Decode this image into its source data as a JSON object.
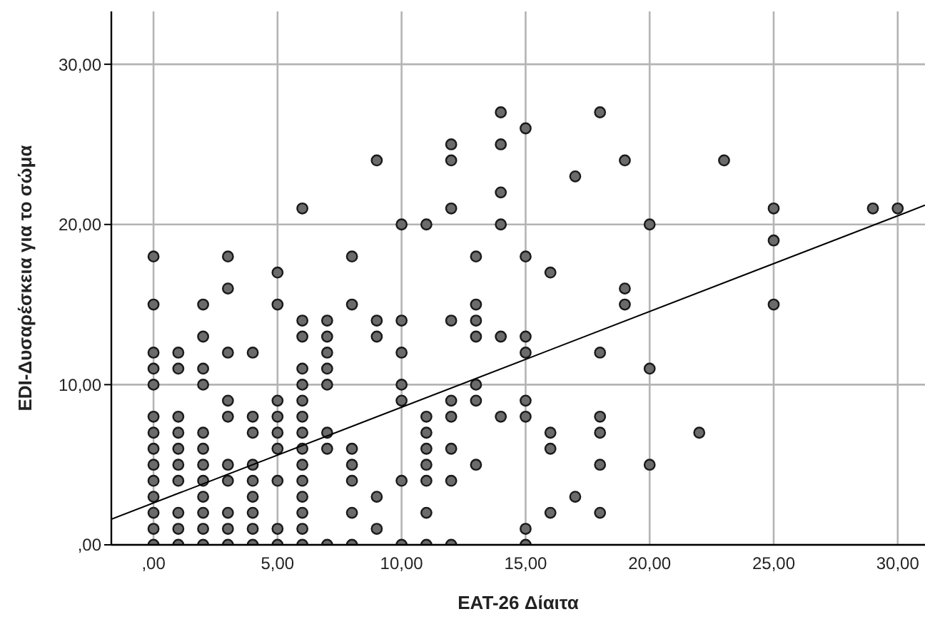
{
  "chart_data": {
    "type": "scatter",
    "xlabel": "EAT-26 Δίαιτα",
    "ylabel": "EDI-Δυσαρέσκεια για το σώμα",
    "xlim": [
      -1.7,
      31.1
    ],
    "ylim": [
      0,
      33.3
    ],
    "xticks": [
      {
        "value": 0,
        "label": ",00"
      },
      {
        "value": 5,
        "label": "5,00"
      },
      {
        "value": 10,
        "label": "10,00"
      },
      {
        "value": 15,
        "label": "15,00"
      },
      {
        "value": 20,
        "label": "20,00"
      },
      {
        "value": 25,
        "label": "25,00"
      },
      {
        "value": 30,
        "label": "30,00"
      }
    ],
    "yticks": [
      {
        "value": 0,
        "label": ",00"
      },
      {
        "value": 10,
        "label": "10,00"
      },
      {
        "value": 20,
        "label": "20,00"
      },
      {
        "value": 30,
        "label": "30,00"
      }
    ],
    "grid": true,
    "series": [
      {
        "color": "#6b6b6b",
        "marker": "circle",
        "x": [
          0,
          0,
          0,
          0,
          0,
          0,
          0,
          0,
          0,
          0,
          0,
          0,
          0,
          0,
          1,
          1,
          1,
          1,
          1,
          1,
          1,
          1,
          1,
          1,
          2,
          2,
          2,
          2,
          2,
          2,
          2,
          2,
          2,
          2,
          2,
          2,
          3,
          3,
          3,
          3,
          3,
          3,
          3,
          3,
          3,
          3,
          4,
          4,
          4,
          4,
          4,
          4,
          4,
          4,
          4,
          5,
          5,
          5,
          5,
          5,
          5,
          5,
          5,
          5,
          6,
          6,
          6,
          6,
          6,
          6,
          6,
          6,
          6,
          6,
          6,
          6,
          6,
          6,
          6,
          7,
          7,
          7,
          7,
          7,
          7,
          7,
          7,
          8,
          8,
          8,
          8,
          8,
          8,
          8,
          9,
          9,
          9,
          9,
          9,
          10,
          10,
          10,
          10,
          10,
          10,
          10,
          11,
          11,
          11,
          11,
          11,
          11,
          11,
          11,
          12,
          12,
          12,
          12,
          12,
          12,
          12,
          12,
          12,
          13,
          13,
          13,
          13,
          13,
          13,
          13,
          14,
          14,
          14,
          14,
          14,
          14,
          15,
          15,
          15,
          15,
          15,
          15,
          15,
          15,
          16,
          16,
          16,
          16,
          17,
          17,
          18,
          18,
          18,
          18,
          18,
          18,
          19,
          19,
          19,
          20,
          20,
          20,
          22,
          23,
          25,
          25,
          25,
          29,
          30
        ],
        "values": [
          18,
          15,
          12,
          11,
          10,
          8,
          7,
          6,
          5,
          4,
          3,
          2,
          1,
          0,
          12,
          11,
          8,
          7,
          6,
          5,
          4,
          2,
          1,
          0,
          15,
          13,
          11,
          10,
          7,
          6,
          5,
          4,
          3,
          2,
          1,
          0,
          18,
          16,
          12,
          9,
          8,
          5,
          4,
          2,
          1,
          0,
          12,
          8,
          7,
          5,
          4,
          3,
          2,
          1,
          0,
          17,
          15,
          9,
          8,
          7,
          6,
          4,
          1,
          0,
          21,
          14,
          13,
          11,
          10,
          9,
          8,
          7,
          6,
          5,
          4,
          3,
          2,
          1,
          0,
          14,
          13,
          12,
          11,
          10,
          7,
          6,
          0,
          18,
          15,
          6,
          5,
          4,
          2,
          0,
          24,
          14,
          13,
          3,
          1,
          20,
          14,
          12,
          10,
          9,
          4,
          0,
          20,
          8,
          7,
          6,
          5,
          4,
          2,
          0,
          25,
          24,
          21,
          14,
          9,
          8,
          6,
          4,
          0,
          18,
          15,
          14,
          13,
          10,
          9,
          5,
          27,
          25,
          22,
          20,
          13,
          8,
          26,
          18,
          13,
          12,
          9,
          8,
          1,
          0,
          17,
          7,
          6,
          2,
          23,
          3,
          27,
          12,
          8,
          7,
          5,
          2,
          24,
          16,
          15,
          20,
          11,
          5,
          7,
          24,
          21,
          19,
          15,
          21,
          21
        ]
      },
      {
        "type": "line",
        "color": "#000000",
        "x": [
          -1.7,
          31.1
        ],
        "values": [
          1.6,
          21.2
        ]
      }
    ]
  }
}
